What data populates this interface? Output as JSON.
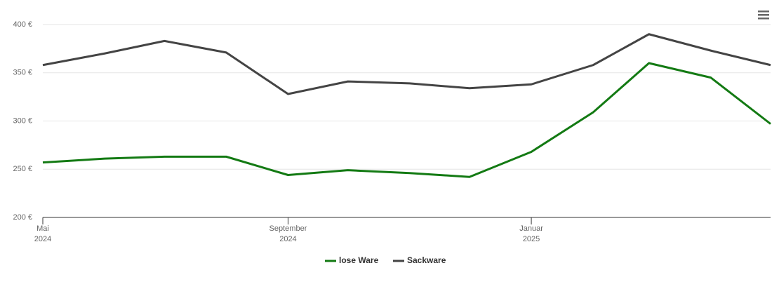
{
  "chart_data": {
    "type": "line",
    "x": [
      "2024-05",
      "2024-06",
      "2024-07",
      "2024-08",
      "2024-09",
      "2024-10",
      "2024-11",
      "2024-12",
      "2025-01",
      "2025-02",
      "2025-03",
      "2025-04",
      "2025-05"
    ],
    "series": [
      {
        "name": "lose Ware",
        "color": "#137a13",
        "values": [
          257,
          261,
          263,
          263,
          244,
          249,
          246,
          242,
          268,
          309,
          360,
          345,
          297
        ]
      },
      {
        "name": "Sackware",
        "color": "#444444",
        "values": [
          358,
          370,
          383,
          371,
          328,
          341,
          339,
          334,
          338,
          358,
          390,
          373,
          358
        ]
      }
    ],
    "xlim": [
      "2024-05",
      "2025-05"
    ],
    "xticks": [
      {
        "value": "2024-05",
        "label": [
          "Mai",
          "2024"
        ]
      },
      {
        "value": "2024-09",
        "label": [
          "September",
          "2024"
        ]
      },
      {
        "value": "2025-01",
        "label": [
          "Januar",
          "2025"
        ]
      }
    ],
    "ylim": [
      200,
      400
    ],
    "yticks": [
      {
        "value": 200,
        "label": "200 €"
      },
      {
        "value": 250,
        "label": "250 €"
      },
      {
        "value": 300,
        "label": "300 €"
      },
      {
        "value": 350,
        "label": "350 €"
      },
      {
        "value": 400,
        "label": "400 €"
      }
    ],
    "grid": true
  }
}
